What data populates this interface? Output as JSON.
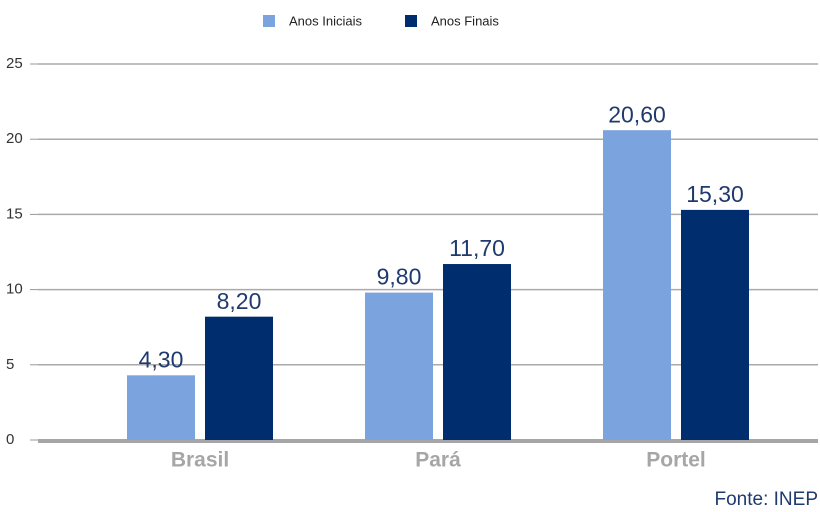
{
  "chart_data": {
    "type": "bar",
    "categories": [
      "Brasil",
      "Pará",
      "Portel"
    ],
    "series": [
      {
        "name": "Anos Iniciais",
        "color": "#7ba3de",
        "values": [
          4.3,
          9.8,
          20.6
        ],
        "value_labels": [
          "4,30",
          "9,80",
          "20,60"
        ]
      },
      {
        "name": "Anos Finais",
        "color": "#002d6e",
        "values": [
          8.2,
          11.7,
          15.3
        ],
        "value_labels": [
          "8,20",
          "11,70",
          "15,30"
        ]
      }
    ],
    "ylim": [
      0,
      25
    ],
    "yticks": [
      0,
      5,
      10,
      15,
      20,
      25
    ],
    "grid": true,
    "legend": "top",
    "source": "Fonte: INEP"
  }
}
